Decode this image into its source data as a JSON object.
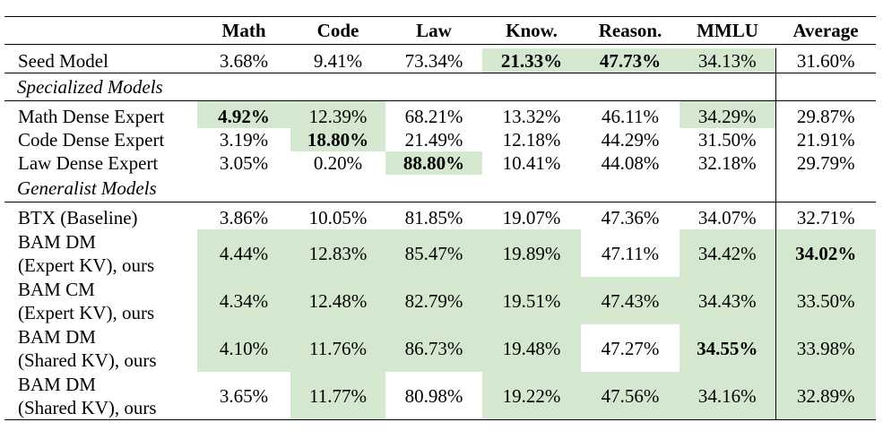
{
  "columns": [
    "",
    "Math",
    "Code",
    "Law",
    "Know.",
    "Reason.",
    "MMLU",
    "Average"
  ],
  "seed": {
    "label": "Seed Model",
    "values": [
      "3.68%",
      "9.41%",
      "73.34%",
      "21.33%",
      "47.73%",
      "34.13%",
      "31.60%"
    ]
  },
  "specialized": {
    "title": "Specialized Models",
    "rows": [
      {
        "label": "Math Dense Expert",
        "values": [
          "4.92%",
          "12.39%",
          "68.21%",
          "13.32%",
          "46.11%",
          "34.29%",
          "29.87%"
        ]
      },
      {
        "label": "Code Dense Expert",
        "values": [
          "3.19%",
          "18.80%",
          "21.49%",
          "12.18%",
          "44.29%",
          "31.50%",
          "21.91%"
        ]
      },
      {
        "label": "Law Dense Expert",
        "values": [
          "3.05%",
          "0.20%",
          "88.80%",
          "10.41%",
          "44.08%",
          "32.18%",
          "29.79%"
        ]
      }
    ]
  },
  "generalist": {
    "title": "Generalist Models",
    "rows": [
      {
        "label": "BTX (Baseline)",
        "values": [
          "3.86%",
          "10.05%",
          "81.85%",
          "19.07%",
          "47.36%",
          "34.07%",
          "32.71%"
        ]
      },
      {
        "label_line1": "BAM DM",
        "label_line2": "(Expert KV), ours",
        "values": [
          "4.44%",
          "12.83%",
          "85.47%",
          "19.89%",
          "47.11%",
          "34.42%",
          "34.02%"
        ]
      },
      {
        "label_line1": "BAM CM",
        "label_line2": "(Expert KV), ours",
        "values": [
          "4.34%",
          "12.48%",
          "82.79%",
          "19.51%",
          "47.43%",
          "34.43%",
          "33.50%"
        ]
      },
      {
        "label_line1": "BAM DM",
        "label_line2": "(Shared KV), ours",
        "values": [
          "4.10%",
          "11.76%",
          "86.73%",
          "19.48%",
          "47.27%",
          "34.55%",
          "33.98%"
        ]
      },
      {
        "label_line1": "BAM DM",
        "label_line2": "(Shared KV), ours",
        "values": [
          "3.65%",
          "11.77%",
          "80.98%",
          "19.22%",
          "47.56%",
          "34.16%",
          "32.89%"
        ]
      }
    ]
  },
  "highlight_color": "#d3e8cf"
}
